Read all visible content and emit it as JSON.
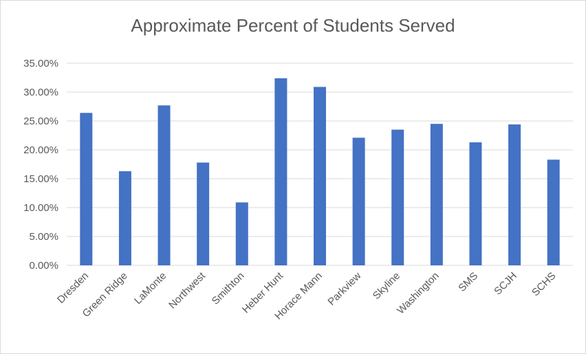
{
  "chart_data": {
    "type": "bar",
    "title": "Approximate Percent of Students Served",
    "xlabel": "",
    "ylabel": "",
    "ylim": [
      0,
      0.35
    ],
    "yticks": [
      "0.00%",
      "5.00%",
      "10.00%",
      "15.00%",
      "20.00%",
      "25.00%",
      "30.00%",
      "35.00%"
    ],
    "grid": true,
    "legend": "none",
    "color": "#4472C4",
    "categories": [
      "Dresden",
      "Green Ridge",
      "LaMonte",
      "Northwest",
      "Smithton",
      "Heber Hunt",
      "Horace Mann",
      "Parkview",
      "Skyline",
      "Washington",
      "SMS",
      "SCJH",
      "SCHS"
    ],
    "values": [
      0.264,
      0.163,
      0.277,
      0.178,
      0.109,
      0.324,
      0.309,
      0.221,
      0.235,
      0.245,
      0.213,
      0.244,
      0.183
    ]
  }
}
